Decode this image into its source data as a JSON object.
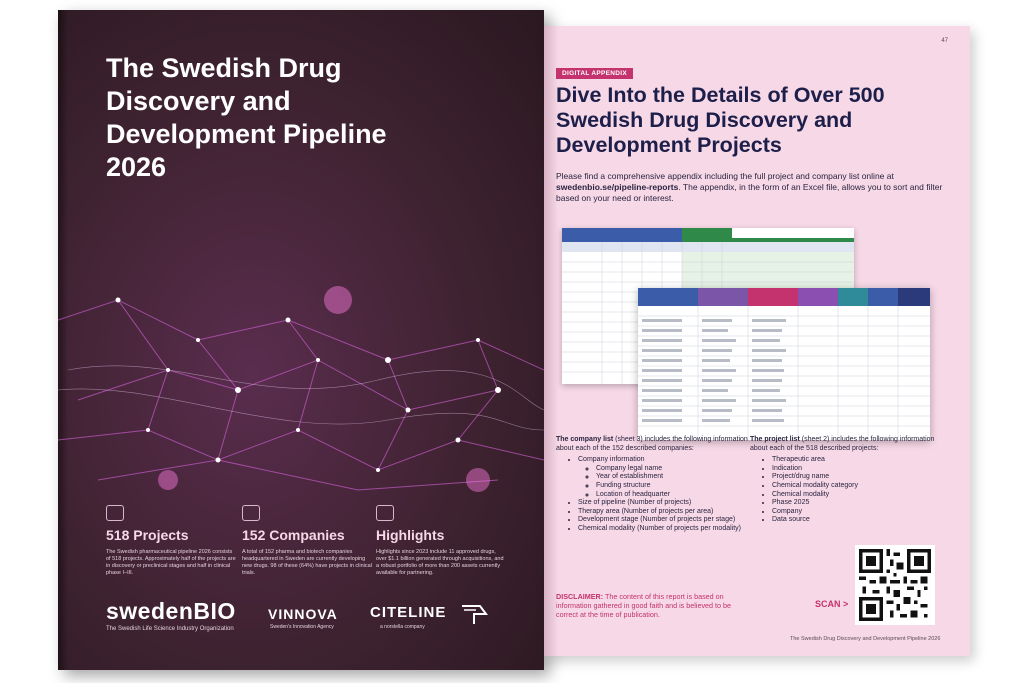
{
  "cover": {
    "title": "The Swedish Drug Discovery and Development Pipeline 2026",
    "stats": [
      {
        "icon": "flask-icon",
        "heading": "518 Projects",
        "text": "The Swedish pharmaceutical pipeline 2026 consists of 518 projects. Approximately half of the projects are in discovery or preclinical stages and half in clinical phase I–III."
      },
      {
        "icon": "building-icon",
        "heading": "152 Companies",
        "text": "A total of 152 pharma and biotech companies headquartered in Sweden are currently developing new drugs. 98 of these (64%) have projects in clinical trials."
      },
      {
        "icon": "sparkle-icon",
        "heading": "Highlights",
        "text": "Highlights since 2023 include 11 approved drugs, over $1.1 billion generated through acquisitions, and a robust portfolio of more than 200 assets currently available for partnering."
      }
    ],
    "logos": {
      "swedenbio": "swedenBIO",
      "swedenbio_sub": "The Swedish Life Science Industry Organization",
      "vinnova": "VINNOVA",
      "vinnova_sub": "Sweden's Innovation Agency",
      "citeline": "CITELINE",
      "citeline_sub": "a norstella company"
    }
  },
  "page": {
    "number": "47",
    "tag": "DIGITAL APPENDIX",
    "title": "Dive Into the Details of Over 500 Swedish Drug Discovery and Development Projects",
    "intro_before": "Please find a comprehensive appendix including the full project and company list online at ",
    "intro_link": "swedenbio.se/pipeline-reports",
    "intro_after": ". The appendix, in the form of an Excel file, allows you to sort and filter based on your need or interest.",
    "company_list": {
      "lead_bold": "The company list",
      "lead_rest": " (sheet 3) includes the following information about each of the 152 described companies:",
      "items": [
        {
          "label": "Company information",
          "sub": [
            "Company legal name",
            "Year of establishment",
            "Funding structure",
            "Location of headquarter"
          ]
        },
        {
          "label": "Size of pipeline (Number of projects)"
        },
        {
          "label": "Therapy area (Number of projects per area)"
        },
        {
          "label": "Development stage (Number of projects per stage)"
        },
        {
          "label": "Chemical modality (Number of projects per modality)"
        }
      ]
    },
    "project_list": {
      "lead_bold": "The project list",
      "lead_rest": " (sheet 2) includes the following information about each of the 518 described projects:",
      "items": [
        "Therapeutic area",
        "Indication",
        "Project/drug name",
        "Chemical modality category",
        "Chemical modality",
        "Phase 2025",
        "Company",
        "Data source"
      ]
    },
    "disclaimer_label": "DISCLAIMER:",
    "disclaimer_text": " The content of this report is based on information gathered in good faith and is believed to be correct at the time of publication.",
    "scan": "SCAN >",
    "footer": "The Swedish Drug Discovery and Development Pipeline 2026"
  },
  "colors": {
    "cover_bg": "#3e2230",
    "accent": "#c4336d",
    "title_navy": "#1d1f4a",
    "page_bg": "#f6d8e6"
  }
}
